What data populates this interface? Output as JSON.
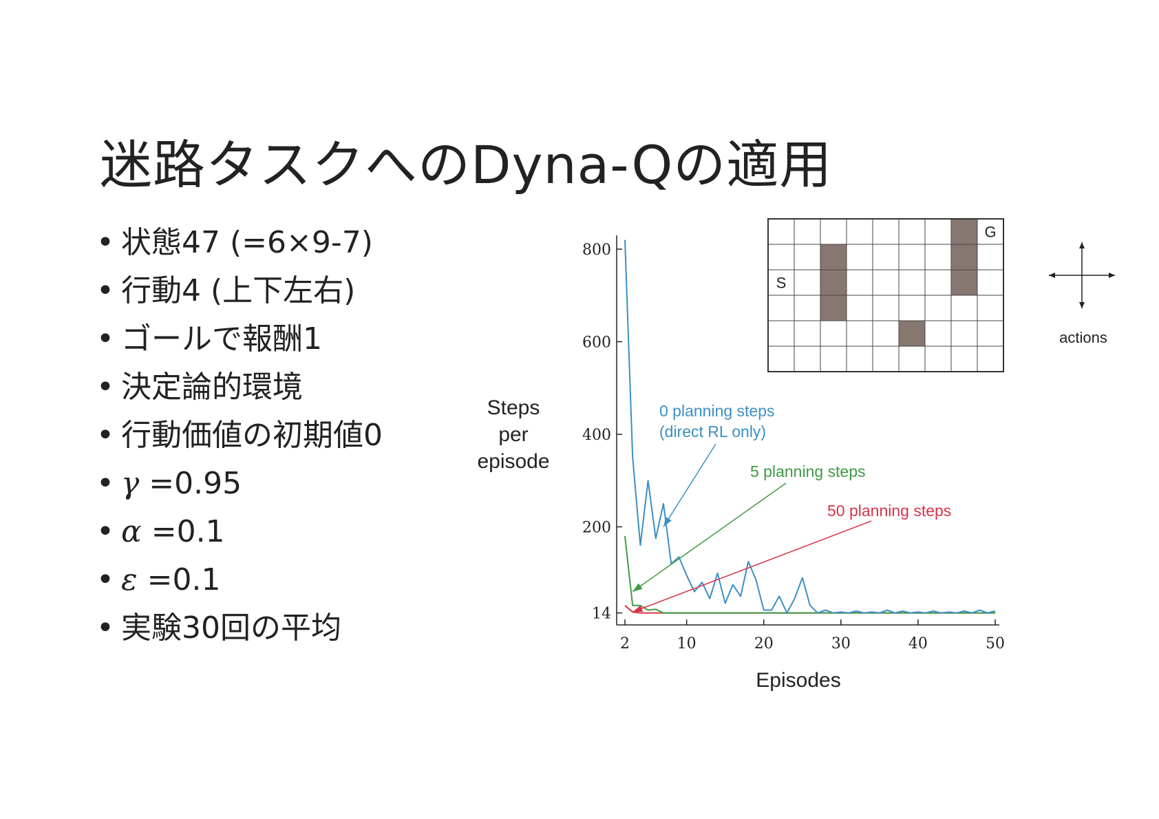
{
  "slide": {
    "title": "迷路タスクへのDyna-Qの適用",
    "bullets": [
      {
        "greek": "",
        "text": "状態47 (=6×9-7)"
      },
      {
        "greek": "",
        "text": "行動4 (上下左右)"
      },
      {
        "greek": "",
        "text": "ゴールで報酬1"
      },
      {
        "greek": "",
        "text": "決定論的環境"
      },
      {
        "greek": "",
        "text": "行動価値の初期値0"
      },
      {
        "greek": "γ",
        "text": " =0.95"
      },
      {
        "greek": "α",
        "text": " =0.1"
      },
      {
        "greek": "ε",
        "text": " =0.1"
      },
      {
        "greek": "",
        "text": "実験30回の平均"
      }
    ]
  },
  "maze": {
    "rows": 6,
    "cols": 9,
    "walls": [
      [
        1,
        2
      ],
      [
        2,
        2
      ],
      [
        3,
        2
      ],
      [
        0,
        7
      ],
      [
        1,
        7
      ],
      [
        2,
        7
      ],
      [
        4,
        5
      ]
    ],
    "start": {
      "row": 2,
      "col": 0,
      "label": "S"
    },
    "goal": {
      "row": 0,
      "col": 8,
      "label": "G"
    },
    "wall_color": "#867870",
    "actions_label": "actions"
  },
  "chart_data": {
    "type": "line",
    "title": "",
    "xlabel": "Episodes",
    "ylabel": "Steps per episode",
    "ylabel_lines": [
      "Steps",
      "per",
      "episode"
    ],
    "xlim": [
      2,
      50
    ],
    "ylim": [
      0,
      800
    ],
    "xticks": [
      2,
      10,
      20,
      30,
      40,
      50
    ],
    "yticks": [
      14,
      200,
      400,
      600,
      800
    ],
    "grid": false,
    "series": [
      {
        "name": "0 planning steps",
        "name_line2": "(direct RL only)",
        "color": "#3b8fc4",
        "x": [
          2,
          3,
          4,
          5,
          6,
          7,
          8,
          9,
          10,
          11,
          12,
          13,
          14,
          15,
          16,
          17,
          18,
          19,
          20,
          21,
          22,
          23,
          24,
          25,
          26,
          27,
          28,
          29,
          30,
          31,
          32,
          33,
          34,
          35,
          36,
          37,
          38,
          39,
          40,
          41,
          42,
          43,
          44,
          45,
          46,
          47,
          48,
          49,
          50
        ],
        "values": [
          820,
          350,
          160,
          300,
          175,
          250,
          120,
          135,
          95,
          60,
          80,
          45,
          100,
          35,
          75,
          50,
          125,
          85,
          20,
          20,
          50,
          14,
          45,
          90,
          30,
          14,
          20,
          14,
          16,
          14,
          18,
          14,
          16,
          14,
          20,
          14,
          18,
          14,
          16,
          14,
          18,
          14,
          16,
          14,
          18,
          14,
          20,
          14,
          18
        ]
      },
      {
        "name": "5 planning steps",
        "color": "#3e9a44",
        "x": [
          2,
          3,
          4,
          5,
          6,
          7,
          8,
          9,
          10,
          11,
          12,
          13,
          14,
          15,
          16,
          17,
          18,
          19,
          20,
          21,
          22,
          23,
          24,
          25,
          26,
          27,
          28,
          29,
          30,
          31,
          32,
          33,
          34,
          35,
          36,
          37,
          38,
          39,
          40,
          41,
          42,
          43,
          44,
          45,
          46,
          47,
          48,
          49,
          50
        ],
        "values": [
          180,
          30,
          30,
          20,
          22,
          14,
          14,
          14,
          14,
          14,
          14,
          14,
          14,
          14,
          14,
          14,
          14,
          14,
          14,
          14,
          14,
          14,
          14,
          14,
          14,
          14,
          14,
          14,
          14,
          14,
          14,
          14,
          14,
          14,
          14,
          14,
          14,
          14,
          14,
          14,
          14,
          14,
          14,
          14,
          14,
          14,
          14,
          14,
          14
        ]
      },
      {
        "name": "50 planning steps",
        "color": "#d63348",
        "x": [
          2,
          3,
          4,
          5,
          6,
          7,
          8,
          9,
          10,
          11,
          12,
          13,
          14,
          15,
          16,
          17,
          18,
          19,
          20,
          21,
          22,
          23,
          24,
          25,
          26,
          27,
          28,
          29,
          30,
          31,
          32,
          33,
          34,
          35,
          36,
          37,
          38,
          39,
          40,
          41,
          42,
          43,
          44,
          45,
          46,
          47,
          48,
          49,
          50
        ],
        "values": [
          30,
          16,
          14,
          14,
          14,
          14,
          14,
          14,
          14,
          14,
          14,
          14,
          14,
          14,
          14,
          14,
          14,
          14,
          14,
          14,
          14,
          14,
          14,
          14,
          14,
          14,
          14,
          14,
          14,
          14,
          14,
          14,
          14,
          14,
          14,
          14,
          14,
          14,
          14,
          14,
          14,
          14,
          14,
          14,
          14,
          14,
          14,
          14,
          14
        ]
      }
    ],
    "annotations": [
      {
        "series": 0,
        "lines": [
          "0 planning steps",
          "(direct RL only)"
        ],
        "target": [
          7,
          200
        ]
      },
      {
        "series": 1,
        "lines": [
          "5 planning steps"
        ],
        "target": [
          3,
          60
        ]
      },
      {
        "series": 2,
        "lines": [
          "50 planning steps"
        ],
        "target": [
          3,
          16
        ]
      }
    ]
  }
}
